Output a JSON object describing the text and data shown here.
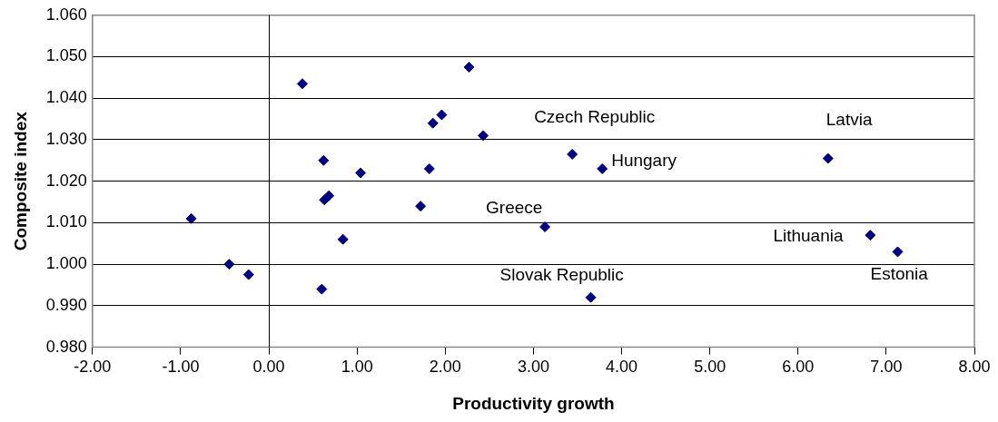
{
  "chart_data": {
    "type": "scatter",
    "xlabel": "Productivity growth",
    "ylabel": "Composite index",
    "x": [
      -0.88,
      -0.45,
      -0.23,
      0.38,
      0.6,
      0.62,
      0.63,
      0.68,
      0.84,
      1.04,
      1.72,
      1.82,
      1.86,
      1.96,
      2.27,
      2.43,
      3.44,
      3.78,
      3.13,
      3.65,
      6.34,
      6.82,
      7.13
    ],
    "series": [
      {
        "color": "#000080",
        "values": [
          1.011,
          1.0,
          0.9975,
          1.0435,
          0.994,
          1.025,
          1.0155,
          1.0165,
          1.006,
          1.022,
          1.014,
          1.023,
          1.034,
          1.036,
          1.0475,
          1.031,
          1.0265,
          1.023,
          1.009,
          0.992,
          1.0255,
          1.007,
          1.003
        ]
      }
    ],
    "marker": "diamond",
    "grid": "y",
    "legend": false,
    "ref_lines": [
      {
        "axis": "x",
        "value": 0,
        "color": "#000000"
      }
    ],
    "xlim": [
      -2,
      8
    ],
    "xticks": [
      {
        "value": -2,
        "label": "-2.00"
      },
      {
        "value": -1,
        "label": "-1.00"
      },
      {
        "value": 0,
        "label": "0.00"
      },
      {
        "value": 1,
        "label": "1.00"
      },
      {
        "value": 2,
        "label": "2.00"
      },
      {
        "value": 3,
        "label": "3.00"
      },
      {
        "value": 4,
        "label": "4.00"
      },
      {
        "value": 5,
        "label": "5.00"
      },
      {
        "value": 6,
        "label": "6.00"
      },
      {
        "value": 7,
        "label": "7.00"
      },
      {
        "value": 8,
        "label": "8.00"
      }
    ],
    "ylim": [
      0.98,
      1.06
    ],
    "yticks": [
      {
        "value": 0.98,
        "label": "0.980"
      },
      {
        "value": 0.99,
        "label": "0.990"
      },
      {
        "value": 1.0,
        "label": "1.000"
      },
      {
        "value": 1.01,
        "label": "1.010"
      },
      {
        "value": 1.02,
        "label": "1.020"
      },
      {
        "value": 1.03,
        "label": "1.030"
      },
      {
        "value": 1.04,
        "label": "1.040"
      },
      {
        "value": 1.05,
        "label": "1.050"
      },
      {
        "value": 1.06,
        "label": "1.060"
      }
    ],
    "annotations": [
      {
        "text": "Czech Republic",
        "x": 3.44,
        "y": 1.0265
      },
      {
        "text": "Hungary",
        "x": 3.78,
        "y": 1.023
      },
      {
        "text": "Greece",
        "x": 3.13,
        "y": 1.009
      },
      {
        "text": "Slovak Republic",
        "x": 3.65,
        "y": 0.992
      },
      {
        "text": "Latvia",
        "x": 6.34,
        "y": 1.0255
      },
      {
        "text": "Lithuania",
        "x": 6.82,
        "y": 1.007
      },
      {
        "text": "Estonia",
        "x": 7.13,
        "y": 1.003
      }
    ]
  }
}
